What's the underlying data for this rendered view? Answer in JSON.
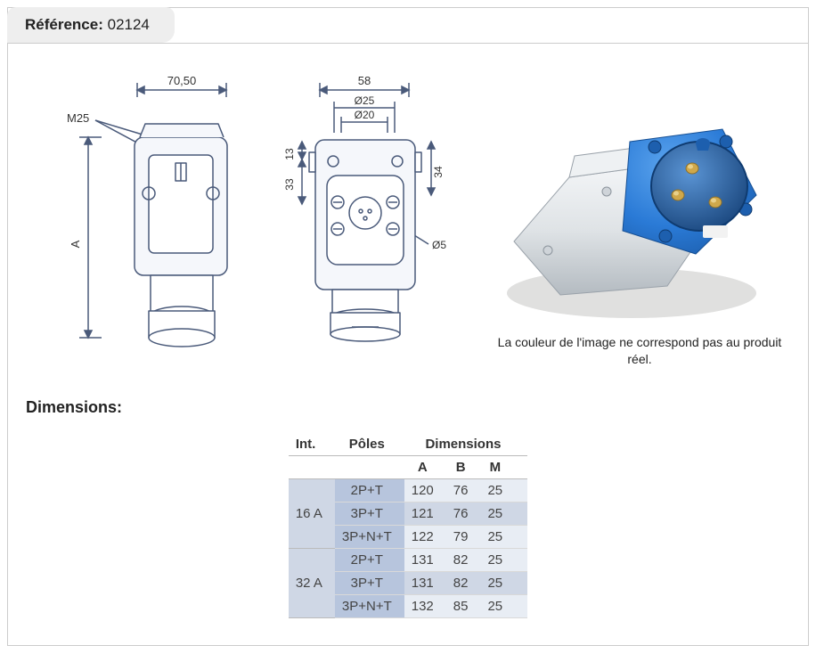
{
  "reference": {
    "label": "Référence:",
    "value": "02124"
  },
  "disclaimer": "La couleur de l'image ne correspond pas au produit réel.",
  "dimensions_title": "Dimensions:",
  "drawing": {
    "left": {
      "width_label": "70,50",
      "m_label": "M25",
      "a_label": "A"
    },
    "right": {
      "width_label": "58",
      "d25": "Ø25",
      "d20": "Ø20",
      "h13": "13",
      "h33": "33",
      "h34": "34",
      "d5": "Ø5"
    },
    "stroke": "#4a5a7a",
    "fill_light": "#f5f7fb"
  },
  "photo": {
    "body_color": "#dfe3e6",
    "body_shadow": "#b4bbc1",
    "blue": "#2a7ad6",
    "blue_dark": "#1d5fae",
    "pin_color": "#cfa84b",
    "pin_highlight": "#e8d08a",
    "bg": "#ffffff",
    "ground": "#e0e0df"
  },
  "table": {
    "headers": {
      "int": "Int.",
      "poles": "Pôles",
      "dims": "Dimensions",
      "A": "A",
      "B": "B",
      "M": "M"
    },
    "groups": [
      {
        "int": "16 A",
        "rows": [
          {
            "pole": "2P+T",
            "A": "120",
            "B": "76",
            "M": "25",
            "shade": "light"
          },
          {
            "pole": "3P+T",
            "A": "121",
            "B": "76",
            "M": "25",
            "shade": "dark"
          },
          {
            "pole": "3P+N+T",
            "A": "122",
            "B": "79",
            "M": "25",
            "shade": "light"
          }
        ]
      },
      {
        "int": "32 A",
        "rows": [
          {
            "pole": "2P+T",
            "A": "131",
            "B": "82",
            "M": "25",
            "shade": "light"
          },
          {
            "pole": "3P+T",
            "A": "131",
            "B": "82",
            "M": "25",
            "shade": "dark"
          },
          {
            "pole": "3P+N+T",
            "A": "132",
            "B": "85",
            "M": "25",
            "shade": "light"
          }
        ]
      }
    ],
    "colors": {
      "int_bg": "#cfd7e5",
      "pole_bg": "#b7c5dd",
      "row_light": "#e8edf4",
      "row_dark": "#cfd7e5"
    }
  }
}
